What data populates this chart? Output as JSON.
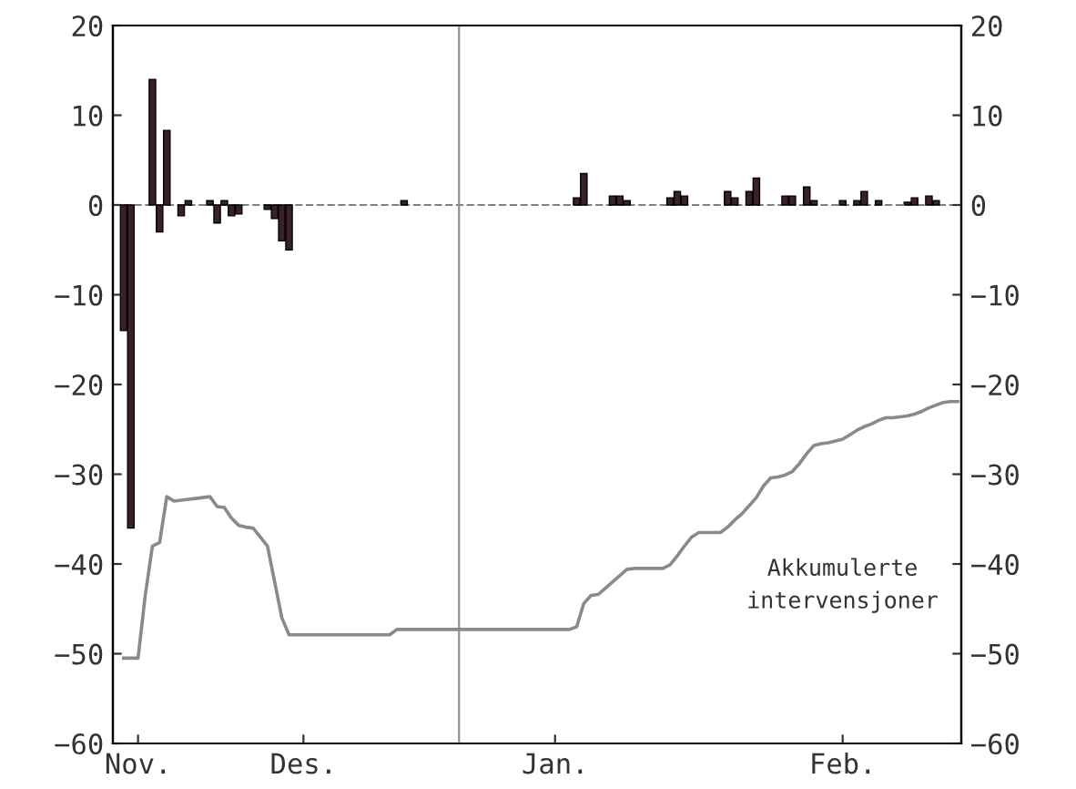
{
  "chart_data": {
    "type": "bar",
    "categories": [
      null,
      null,
      null,
      "Nov.",
      null,
      null,
      null,
      null,
      null,
      null,
      null,
      null,
      null,
      null,
      null,
      null,
      null,
      null,
      null,
      null,
      null,
      null,
      null,
      null,
      null,
      null,
      "Des.",
      null,
      null,
      null,
      null,
      null,
      null,
      null,
      null,
      null,
      null,
      null,
      null,
      null,
      null,
      null,
      null,
      null,
      null,
      null,
      null,
      null,
      null,
      null,
      null,
      null,
      null,
      null,
      null,
      null,
      null,
      null,
      null,
      null,
      null,
      "Jan.",
      null,
      null,
      null,
      null,
      null,
      null,
      null,
      null,
      null,
      null,
      null,
      null,
      null,
      null,
      null,
      null,
      null,
      null,
      null,
      null,
      null,
      null,
      null,
      null,
      null,
      null,
      null,
      null,
      null,
      null,
      null,
      null,
      null,
      null,
      null,
      null,
      null,
      null,
      null,
      "Feb.",
      null,
      null,
      null,
      null,
      null,
      null,
      null,
      null,
      null,
      null,
      null,
      null,
      null,
      null,
      null,
      null
    ],
    "ylim": [
      -60,
      20
    ],
    "yticks": [
      -60,
      -50,
      -40,
      -30,
      -20,
      -10,
      0,
      10,
      20
    ],
    "y2lim": [
      -60,
      20
    ],
    "y2ticks": [
      -60,
      -50,
      -40,
      -30,
      -20,
      -10,
      0,
      10,
      20
    ],
    "grid": false,
    "ref_lines": [
      {
        "axis": "y",
        "value": 0,
        "color": "#808080",
        "line_style": "dashed"
      }
    ],
    "series": [
      {
        "color": "#3a2028",
        "values": [
          null,
          -14,
          -36,
          null,
          null,
          14,
          -3,
          8.3,
          null,
          -1.2,
          0.5,
          null,
          null,
          0.5,
          -2,
          0.5,
          -1.2,
          -1,
          null,
          null,
          null,
          -0.5,
          -1.5,
          -4,
          -5,
          null,
          null,
          null,
          null,
          null,
          null,
          null,
          null,
          null,
          null,
          null,
          null,
          null,
          null,
          null,
          0.5,
          null,
          null,
          null,
          null,
          null,
          null,
          null,
          null,
          null,
          null,
          null,
          null,
          null,
          null,
          null,
          null,
          null,
          null,
          null,
          null,
          null,
          null,
          null,
          0.8,
          3.5,
          null,
          null,
          null,
          1,
          1,
          0.5,
          null,
          null,
          null,
          null,
          null,
          0.8,
          1.5,
          1,
          null,
          null,
          null,
          null,
          null,
          1.5,
          0.8,
          null,
          1.5,
          3,
          null,
          null,
          null,
          1,
          1,
          null,
          2,
          0.5,
          null,
          null,
          null,
          0.5,
          null,
          0.5,
          1.5,
          null,
          0.5,
          null,
          null,
          null,
          0.3,
          0.8,
          null,
          1,
          0.5,
          null,
          null,
          null
        ]
      },
      {
        "type": "line",
        "name": "Akkumulerte intervensjoner",
        "color": "#8a8a8a",
        "values": [
          null,
          -50.5,
          -50.5,
          -50.5,
          -43.5,
          -38,
          -37.6,
          -32.5,
          -33,
          -32.9,
          -32.8,
          -32.7,
          -32.6,
          -32.5,
          -33.6,
          -33.7,
          -34.9,
          -35.7,
          -35.9,
          -36,
          -37,
          -38,
          -42,
          -46,
          -47.9,
          -47.9,
          -47.9,
          -47.9,
          -47.9,
          -47.9,
          -47.9,
          -47.9,
          -47.9,
          -47.9,
          -47.9,
          -47.9,
          -47.9,
          -47.9,
          -47.9,
          -47.3,
          -47.3,
          -47.3,
          -47.3,
          -47.3,
          -47.3,
          -47.3,
          -47.3,
          -47.3,
          -47.3,
          -47.3,
          -47.3,
          -47.3,
          -47.3,
          -47.3,
          -47.3,
          -47.3,
          -47.3,
          -47.3,
          -47.3,
          -47.3,
          -47.3,
          -47.3,
          -47.3,
          -47.3,
          -47,
          -44.4,
          -43.5,
          -43.4,
          -42.7,
          -42,
          -41.3,
          -40.6,
          -40.5,
          -40.5,
          -40.5,
          -40.5,
          -40.5,
          -40.1,
          -39.1,
          -38,
          -37,
          -36.5,
          -36.5,
          -36.5,
          -36.5,
          -35.9,
          -35.1,
          -34.4,
          -33.5,
          -32.6,
          -31.3,
          -30.4,
          -30.3,
          -30.1,
          -29.7,
          -28.8,
          -27.7,
          -26.8,
          -26.6,
          -26.5,
          -26.3,
          -26.1,
          -25.6,
          -25.1,
          -24.7,
          -24.4,
          -24,
          -23.7,
          -23.7,
          -23.6,
          -23.5,
          -23.3,
          -23,
          -22.6,
          -22.3,
          -22,
          -21.9,
          -21.9
        ]
      }
    ]
  }
}
